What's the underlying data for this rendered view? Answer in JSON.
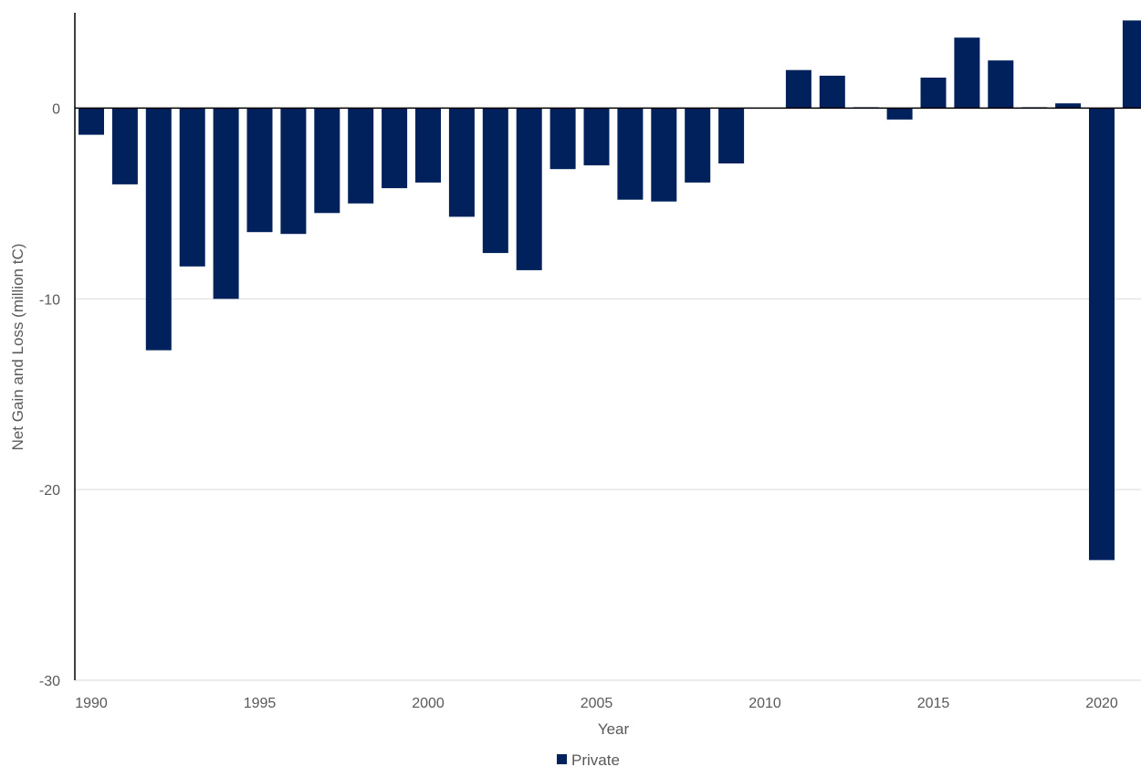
{
  "chart_data": {
    "type": "bar",
    "xlabel": "Year",
    "ylabel": "Net Gain and Loss (million tC)",
    "ylim": [
      -30,
      5
    ],
    "yticks": [
      0,
      -10,
      -20,
      -30
    ],
    "xticks": [
      1990,
      1995,
      2000,
      2005,
      2010,
      2015,
      2020
    ],
    "grid": true,
    "legend_position": "bottom",
    "series": [
      {
        "name": "Private",
        "color": "#00215b",
        "x": [
          1990,
          1991,
          1992,
          1993,
          1994,
          1995,
          1996,
          1997,
          1998,
          1999,
          2000,
          2001,
          2002,
          2003,
          2004,
          2005,
          2006,
          2007,
          2008,
          2009,
          2010,
          2011,
          2012,
          2013,
          2014,
          2015,
          2016,
          2017,
          2018,
          2019,
          2020,
          2021
        ],
        "values": [
          -1.4,
          -4.0,
          -12.7,
          -8.3,
          -10.0,
          -6.5,
          -6.6,
          -5.5,
          -5.0,
          -4.2,
          -3.9,
          -5.7,
          -7.6,
          -8.5,
          -3.2,
          -3.0,
          -4.8,
          -4.9,
          -3.9,
          -2.9,
          0.0,
          2.0,
          1.7,
          0.05,
          -0.6,
          1.6,
          3.7,
          2.5,
          0.05,
          0.25,
          -23.7,
          4.6
        ]
      }
    ]
  }
}
